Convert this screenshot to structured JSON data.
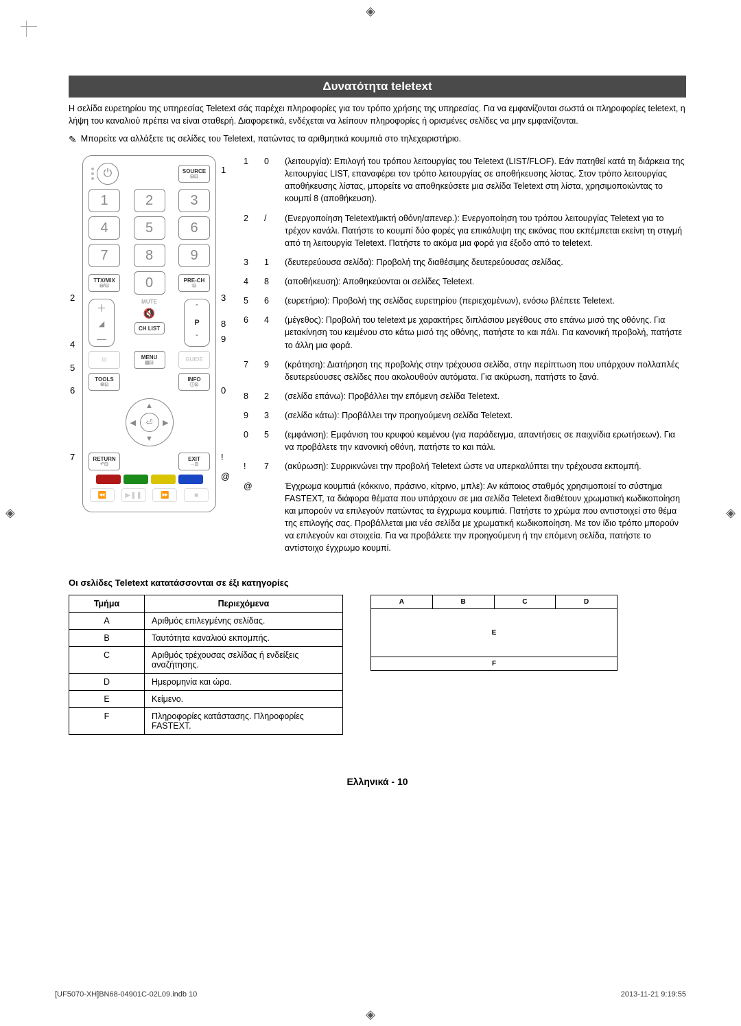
{
  "title": "Δυνατότητα teletext",
  "intro": "Η σελίδα ευρετηρίου της υπηρεσίας Teletext σάς παρέχει πληροφορίες για τον τρόπο χρήσης της υπηρεσίας. Για να εμφανίζονται σωστά οι πληροφορίες teletext, η λήψη του καναλιού πρέπει να είναι σταθερή. Διαφορετικά, ενδέχεται να λείπουν πληροφορίες ή ορισμένες σελίδες να μην εμφανίζονται.",
  "note_icon": "✎",
  "note": "Μπορείτε να αλλάξετε τις σελίδες του Teletext, πατώντας τα αριθμητικά κουμπιά στο τηλεχειριστήριο.",
  "remote": {
    "source": "SOURCE",
    "ttxmix": "TTX/MIX",
    "prech": "PRE-CH",
    "mute": "MUTE",
    "chlist": "CH LIST",
    "menu": "MENU",
    "guide": "GUIDE",
    "tools": "TOOLS",
    "info": "INFO",
    "return": "RETURN",
    "exit": "EXIT",
    "p": "P",
    "nums": [
      "1",
      "2",
      "3",
      "4",
      "5",
      "6",
      "7",
      "8",
      "9",
      "0"
    ],
    "markers": {
      "l2": "2",
      "l4": "4",
      "l5": "5",
      "l6": "6",
      "l7": "7",
      "r1": "1",
      "r3": "3",
      "r8": "8",
      "r9": "9",
      "r0": "0",
      "rexcl": "!",
      "rat": "@"
    },
    "colors": {
      "red": "#b01818",
      "green": "#1a8a1a",
      "yellow": "#d9c400",
      "blue": "#1846c4"
    }
  },
  "desc": [
    {
      "a": "1",
      "b": "0",
      "t": "(λειτουργία): Επιλογή του τρόπου λειτουργίας του Teletext (LIST/FLOF). Εάν πατηθεί κατά τη διάρκεια της λειτουργίας LIST, επαναφέρει τον τρόπο λειτουργίας σε αποθήκευσης λίστας. Στον τρόπο λειτουργίας αποθήκευσης λίστας, μπορείτε να αποθηκεύσετε μια σελίδα Teletext στη λίστα, χρησιμοποιώντας το κουμπί 8 (αποθήκευση)."
    },
    {
      "a": "2",
      "b": "/",
      "t": "(Ενεργοποίηση Teletext/μικτή οθόνη/απενερ.): Ενεργοποίηση του τρόπου λειτουργίας Teletext για το τρέχον κανάλι. Πατήστε το κουμπί δύο φορές για επικάλυψη της εικόνας που εκπέμπεται εκείνη τη στιγμή από τη λειτουργία Teletext. Πατήστε το ακόμα μια φορά για έξοδο από το teletext."
    },
    {
      "a": "3",
      "b": "1",
      "t": "(δευτερεύουσα σελίδα): Προβολή της διαθέσιμης δευτερεύουσας σελίδας."
    },
    {
      "a": "4",
      "b": "8",
      "t": "(αποθήκευση): Αποθηκεύονται οι σελίδες Teletext."
    },
    {
      "a": "5",
      "b": "6",
      "t": "(ευρετήριο): Προβολή της σελίδας ευρετηρίου (περιεχομένων), ενόσω βλέπετε Teletext."
    },
    {
      "a": "6",
      "b": "4",
      "t": "(μέγεθος): Προβολή του teletext με χαρακτήρες διπλάσιου μεγέθους στο επάνω μισό της οθόνης. Για μετακίνηση του κειμένου στο κάτω μισό της οθόνης, πατήστε το και πάλι. Για κανονική προβολή, πατήστε το άλλη μια φορά."
    },
    {
      "a": "7",
      "b": "9",
      "t": "(κράτηση): Διατήρηση της προβολής στην τρέχουσα σελίδα, στην περίπτωση που υπάρχουν πολλαπλές δευτερεύουσες σελίδες που ακολουθούν αυτόματα. Για ακύρωση, πατήστε το ξανά."
    },
    {
      "a": "8",
      "b": "2",
      "t": "(σελίδα επάνω): Προβάλλει την επόμενη σελίδα Teletext."
    },
    {
      "a": "9",
      "b": "3",
      "t": "(σελίδα κάτω): Προβάλλει την προηγούμενη σελίδα Teletext."
    },
    {
      "a": "0",
      "b": "5",
      "t": "(εμφάνιση): Εμφάνιση του κρυφού κειμένου (για παράδειγμα, απαντήσεις σε παιχνίδια ερωτήσεων). Για να προβάλετε την κανονική οθόνη, πατήστε το και πάλι."
    },
    {
      "a": "!",
      "b": "7",
      "t": "(ακύρωση): Συρρικνώνει την προβολή Teletext ώστε να υπερκαλύπτει την τρέχουσα εκπομπή."
    },
    {
      "a": "@",
      "b": "",
      "t": "Έγχρωμα κουμπιά (κόκκινο, πράσινο, κίτρινο, μπλε): Αν κάποιος σταθμός χρησιμοποιεί το σύστημα FASTEXT, τα διάφορα θέματα που υπάρχουν σε μια σελίδα Teletext διαθέτουν χρωματική κωδικοποίηση και μπορούν να επιλεγούν πατώντας τα έγχρωμα κουμπιά. Πατήστε το χρώμα που αντιστοιχεί στο θέμα της επιλογής σας. Προβάλλεται μια νέα σελίδα με χρωματική κωδικοποίηση. Με τον ίδιο τρόπο μπορούν να επιλεγούν και στοιχεία. Για να προβάλετε την προηγούμενη ή την επόμενη σελίδα, πατήστε το αντίστοιχο έγχρωμο κουμπί."
    }
  ],
  "cat_heading": "Οι σελίδες Teletext κατατάσσονται σε έξι κατηγορίες",
  "cat_th1": "Τμήμα",
  "cat_th2": "Περιεχόμενα",
  "cats": [
    {
      "p": "A",
      "d": "Αριθμός επιλεγμένης σελίδας."
    },
    {
      "p": "B",
      "d": "Ταυτότητα καναλιού εκπομπής."
    },
    {
      "p": "C",
      "d": "Αριθμός τρέχουσας σελίδας ή ενδείξεις αναζήτησης."
    },
    {
      "p": "D",
      "d": "Ημερομηνία και ώρα."
    },
    {
      "p": "E",
      "d": "Κείμενο."
    },
    {
      "p": "F",
      "d": "Πληροφορίες κατάστασης. Πληροφορίες FASTEXT."
    }
  ],
  "layout": {
    "A": "A",
    "B": "B",
    "C": "C",
    "D": "D",
    "E": "E",
    "F": "F"
  },
  "footer": "Ελληνικά - 10",
  "print_left": "[UF5070-XH]BN68-04901C-02L09.indb   10",
  "print_right": "2013-11-21   9:19:55"
}
